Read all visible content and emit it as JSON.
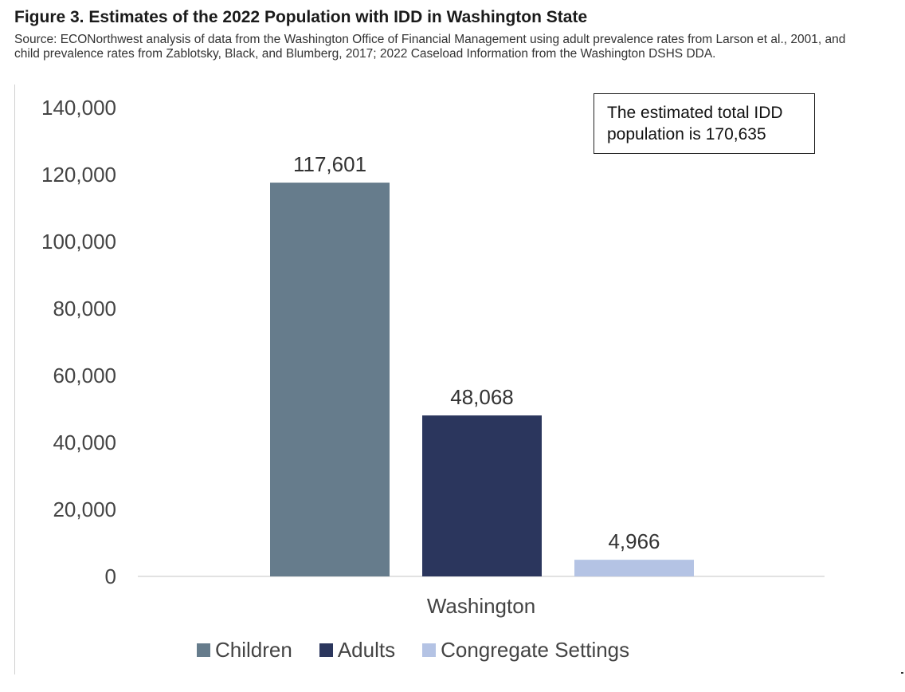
{
  "figure": {
    "title": "Figure 3. Estimates of the 2022 Population with IDD in Washington State",
    "source": "Source: ECONorthwest analysis of data from the Washington Office of Financial Management using adult prevalence rates from Larson et al., 2001, and child prevalence rates from Zablotsky, Black, and Blumberg, 2017; 2022 Caseload Information from the Washington DSHS DDA."
  },
  "annotation": {
    "text": "The estimated total IDD population is 170,635"
  },
  "chart_data": {
    "type": "bar",
    "categories": [
      "Washington"
    ],
    "series": [
      {
        "name": "Children",
        "values": [
          117601
        ],
        "label": "117,601",
        "color": "#667c8c"
      },
      {
        "name": "Adults",
        "values": [
          48068
        ],
        "label": "48,068",
        "color": "#2b365d"
      },
      {
        "name": "Congregate Settings",
        "values": [
          4966
        ],
        "label": "4,966",
        "color": "#b4c3e4"
      }
    ],
    "ylim": [
      0,
      140000
    ],
    "yticks": [
      0,
      20000,
      40000,
      60000,
      80000,
      100000,
      120000,
      140000
    ],
    "ytick_labels": [
      "0",
      "20,000",
      "40,000",
      "60,000",
      "80,000",
      "100,000",
      "120,000",
      "140,000"
    ],
    "grid": false,
    "legend_position": "bottom"
  }
}
